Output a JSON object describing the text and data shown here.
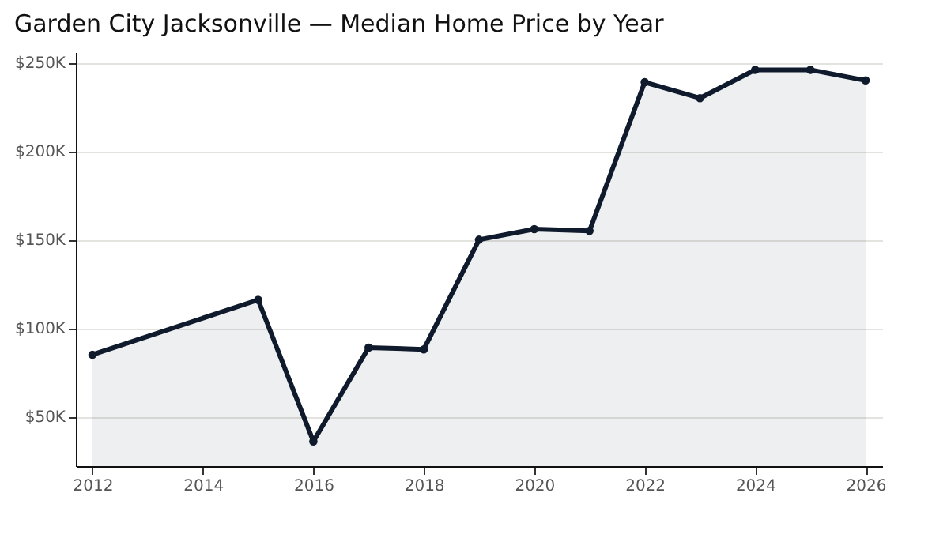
{
  "chart_data": {
    "type": "area",
    "title": "Garden City Jacksonville — Median Home Price by Year",
    "x": [
      2012,
      2015,
      2016,
      2017,
      2018,
      2019,
      2020,
      2021,
      2022,
      2023,
      2024,
      2025,
      2026
    ],
    "series": [
      {
        "color": "#0f1b2d",
        "values": [
          85000,
          116000,
          36000,
          89000,
          88000,
          150000,
          156000,
          155000,
          239000,
          230000,
          246000,
          246000,
          240000
        ]
      }
    ],
    "xlim": [
      2011.7,
      2026.3
    ],
    "xticks": [
      2012,
      2014,
      2016,
      2018,
      2020,
      2022,
      2024,
      2026
    ],
    "ylim": [
      22000,
      256000
    ],
    "yticks": [
      {
        "value": 50000,
        "label": "$50K"
      },
      {
        "value": 100000,
        "label": "$100K"
      },
      {
        "value": 150000,
        "label": "$150K"
      },
      {
        "value": 200000,
        "label": "$200K"
      },
      {
        "value": 250000,
        "label": "$250K"
      }
    ],
    "grid": "y",
    "marker": "circle",
    "line_style": "solid"
  }
}
